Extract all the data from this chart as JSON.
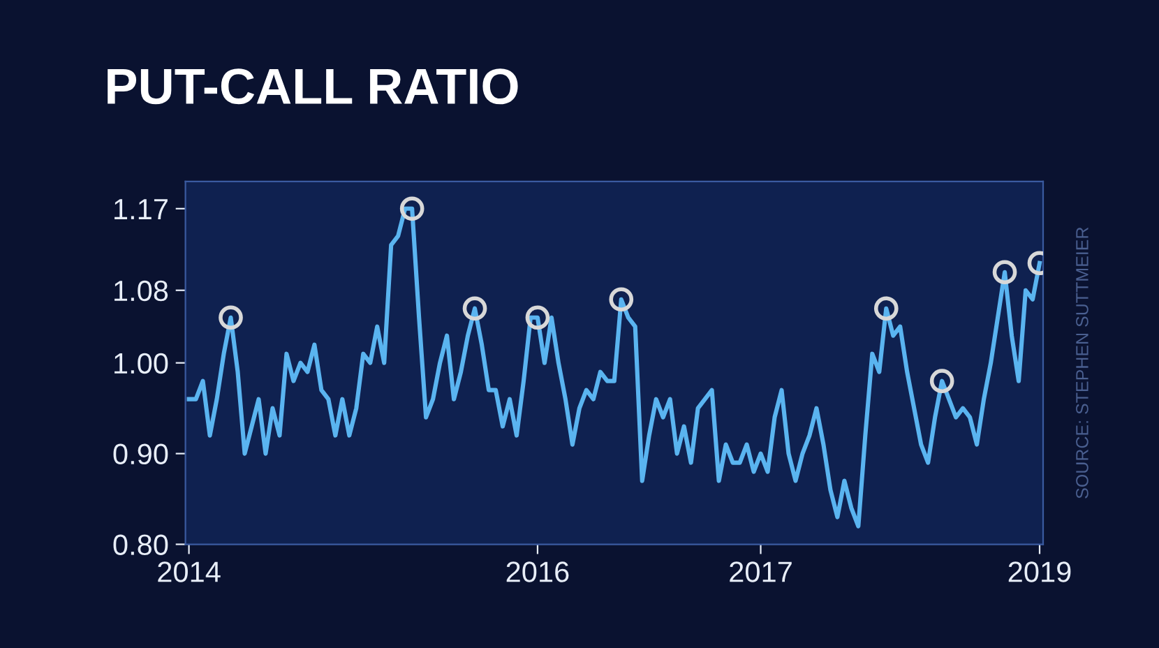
{
  "chart_data": {
    "type": "line",
    "title": "PUT-CALL RATIO",
    "annotations": [
      "SOURCE: STEPHEN SUTTMEIER"
    ],
    "categories": [
      "2014",
      null,
      null,
      null,
      null,
      null,
      null,
      null,
      null,
      null,
      null,
      null,
      null,
      null,
      null,
      null,
      null,
      null,
      null,
      null,
      null,
      null,
      null,
      null,
      null,
      null,
      null,
      null,
      null,
      null,
      null,
      null,
      null,
      null,
      null,
      null,
      null,
      null,
      null,
      null,
      null,
      null,
      null,
      null,
      null,
      null,
      null,
      null,
      null,
      null,
      "2016",
      null,
      null,
      null,
      null,
      null,
      null,
      null,
      null,
      null,
      null,
      null,
      null,
      null,
      null,
      null,
      null,
      null,
      null,
      null,
      null,
      null,
      null,
      null,
      null,
      null,
      null,
      null,
      null,
      null,
      null,
      null,
      "2017",
      null,
      null,
      null,
      null,
      null,
      null,
      null,
      null,
      null,
      null,
      null,
      null,
      null,
      null,
      null,
      null,
      null,
      null,
      null,
      null,
      null,
      null,
      null,
      null,
      null,
      null,
      null,
      null,
      null,
      null,
      null,
      null,
      null,
      null,
      null,
      null,
      null,
      null,
      null,
      "2019"
    ],
    "ylim": [
      0.8,
      1.2
    ],
    "yticks": [
      {
        "value": 0.8,
        "label": "0.80"
      },
      {
        "value": 0.9,
        "label": "0.90"
      },
      {
        "value": 1.0,
        "label": "1.00"
      },
      {
        "value": 1.08,
        "label": "1.08"
      },
      {
        "value": 1.17,
        "label": "1.17"
      }
    ],
    "marker": "none",
    "series": [
      {
        "color": "#5ab4f0",
        "values": [
          0.96,
          0.96,
          0.98,
          0.92,
          0.96,
          1.01,
          1.05,
          0.99,
          0.9,
          0.93,
          0.96,
          0.9,
          0.95,
          0.92,
          1.01,
          0.98,
          1.0,
          0.99,
          1.02,
          0.97,
          0.96,
          0.92,
          0.96,
          0.92,
          0.95,
          1.01,
          1.0,
          1.04,
          1.0,
          1.13,
          1.14,
          1.17,
          1.17,
          1.05,
          0.94,
          0.96,
          1.0,
          1.03,
          0.96,
          0.99,
          1.03,
          1.06,
          1.02,
          0.97,
          0.97,
          0.93,
          0.96,
          0.92,
          0.98,
          1.05,
          1.05,
          1.0,
          1.05,
          1.0,
          0.96,
          0.91,
          0.95,
          0.97,
          0.96,
          0.99,
          0.98,
          0.98,
          1.07,
          1.05,
          1.04,
          0.87,
          0.92,
          0.96,
          0.94,
          0.96,
          0.9,
          0.93,
          0.89,
          0.95,
          0.96,
          0.97,
          0.87,
          0.91,
          0.89,
          0.89,
          0.91,
          0.88,
          0.9,
          0.88,
          0.94,
          0.97,
          0.9,
          0.87,
          0.9,
          0.92,
          0.95,
          0.91,
          0.86,
          0.83,
          0.87,
          0.84,
          0.82,
          0.92,
          1.01,
          0.99,
          1.06,
          1.03,
          1.04,
          0.99,
          0.95,
          0.91,
          0.89,
          0.94,
          0.98,
          0.96,
          0.94,
          0.95,
          0.94,
          0.91,
          0.96,
          1.0,
          1.05,
          1.1,
          1.03,
          0.98,
          1.08,
          1.07,
          1.11
        ]
      },
      {
        "type": "scatter",
        "color": "#d8d8d8",
        "marker": "circle",
        "values": [
          null,
          null,
          null,
          null,
          null,
          null,
          1.05,
          null,
          null,
          null,
          null,
          null,
          null,
          null,
          null,
          null,
          null,
          null,
          null,
          null,
          null,
          null,
          null,
          null,
          null,
          null,
          null,
          null,
          null,
          null,
          null,
          null,
          1.17,
          null,
          null,
          null,
          null,
          null,
          null,
          null,
          null,
          1.06,
          null,
          null,
          null,
          null,
          null,
          null,
          null,
          null,
          1.05,
          null,
          null,
          null,
          null,
          null,
          null,
          null,
          null,
          null,
          null,
          null,
          1.07,
          null,
          null,
          null,
          null,
          null,
          null,
          null,
          null,
          null,
          null,
          null,
          null,
          null,
          null,
          null,
          null,
          null,
          null,
          null,
          null,
          null,
          null,
          null,
          null,
          null,
          null,
          null,
          null,
          null,
          null,
          null,
          null,
          null,
          null,
          null,
          null,
          null,
          1.06,
          null,
          null,
          null,
          null,
          null,
          null,
          null,
          0.98,
          null,
          null,
          null,
          null,
          null,
          null,
          null,
          null,
          1.1,
          null,
          null,
          null,
          null,
          1.11
        ]
      }
    ]
  }
}
